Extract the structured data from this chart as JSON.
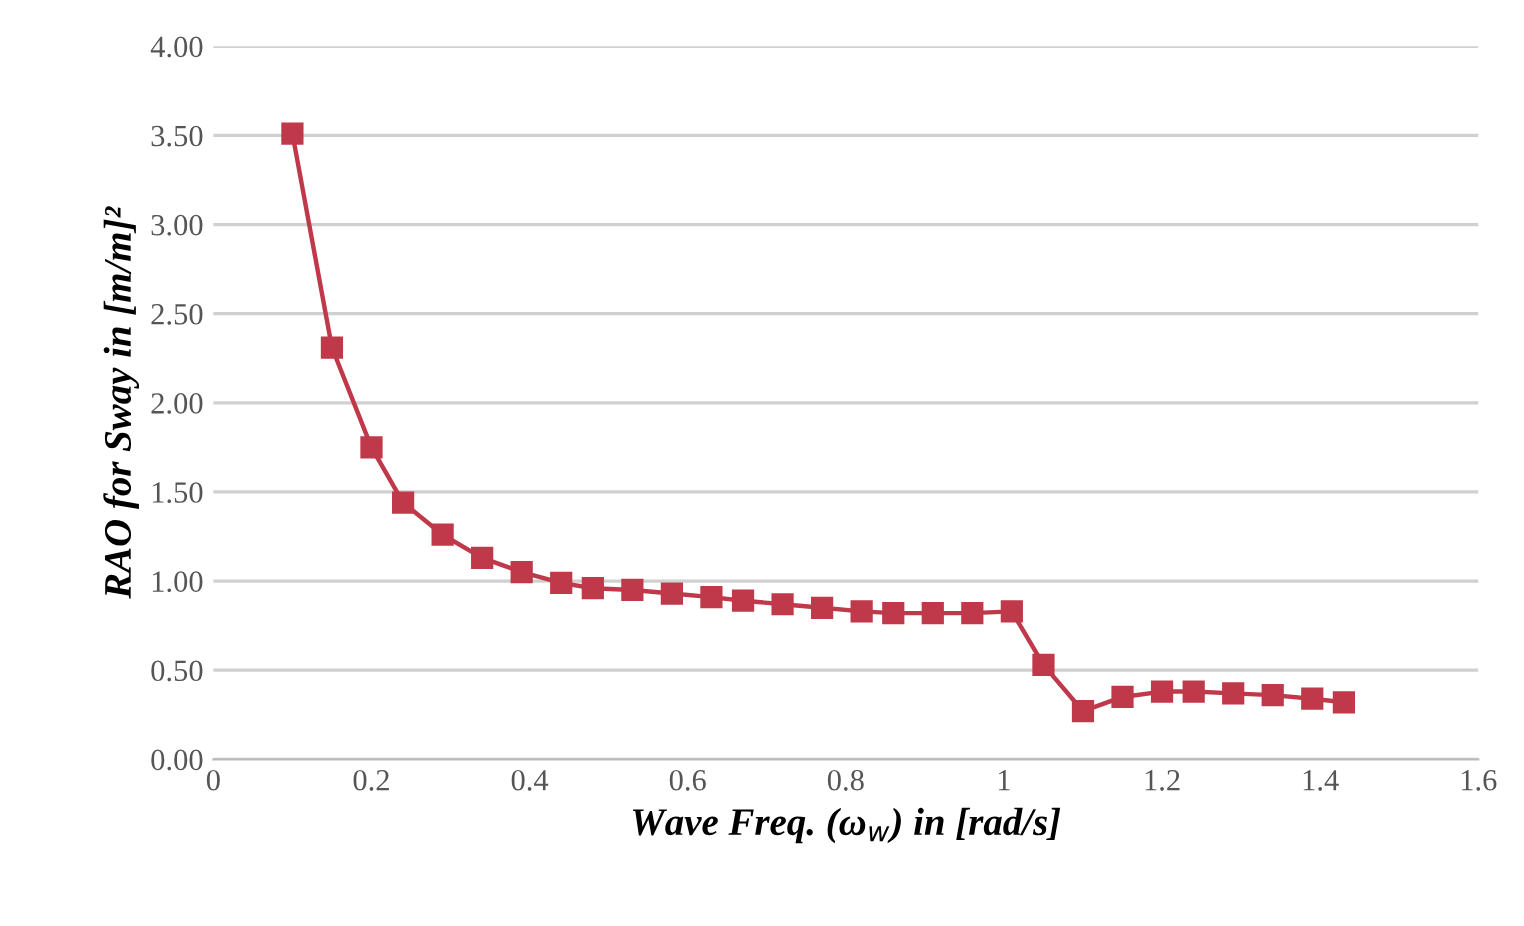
{
  "chart_data": {
    "type": "line",
    "xlabel": "Wave Freq. (ω$_{w}$) in [rad/s]",
    "ylabel": "RAO for Sway in [m/m]²",
    "x": [
      0.1,
      0.15,
      0.2,
      0.24,
      0.29,
      0.34,
      0.39,
      0.44,
      0.48,
      0.53,
      0.58,
      0.63,
      0.67,
      0.72,
      0.77,
      0.82,
      0.86,
      0.91,
      0.96,
      1.01,
      1.05,
      1.1,
      1.15,
      1.2,
      1.24,
      1.29,
      1.34,
      1.39,
      1.43
    ],
    "series": [
      {
        "color": "#c0394a",
        "values": [
          3.51,
          2.31,
          1.75,
          1.44,
          1.26,
          1.13,
          1.05,
          0.99,
          0.96,
          0.95,
          0.93,
          0.91,
          0.89,
          0.87,
          0.85,
          0.83,
          0.82,
          0.82,
          0.82,
          0.83,
          0.53,
          0.27,
          0.35,
          0.38,
          0.38,
          0.37,
          0.36,
          0.34,
          0.32
        ]
      }
    ],
    "xlim": [
      0,
      1.6
    ],
    "xticks": [
      0,
      {
        "value": 0.2,
        "label": "0.2"
      },
      {
        "value": 0.4,
        "label": "0.4"
      },
      {
        "value": 0.6,
        "label": "0.6"
      },
      {
        "value": 0.8,
        "label": "0.8"
      },
      1,
      {
        "value": 1.2,
        "label": "1.2"
      },
      {
        "value": 1.4,
        "label": "1.4"
      },
      {
        "value": 1.6,
        "label": "1.6"
      }
    ],
    "ylim": [
      0,
      4
    ],
    "yticks": [
      {
        "value": 0,
        "label": "0.00"
      },
      {
        "value": 0.5,
        "label": "0.50"
      },
      {
        "value": 1,
        "label": "1.00"
      },
      {
        "value": 1.5,
        "label": "1.50"
      },
      {
        "value": 2,
        "label": "2.00"
      },
      {
        "value": 2.5,
        "label": "2.50"
      },
      {
        "value": 3,
        "label": "3.00"
      },
      {
        "value": 3.5,
        "label": "3.50"
      },
      {
        "value": 4,
        "label": "4.00"
      }
    ],
    "grid": "y",
    "marker": "square",
    "line_style": "solid"
  }
}
